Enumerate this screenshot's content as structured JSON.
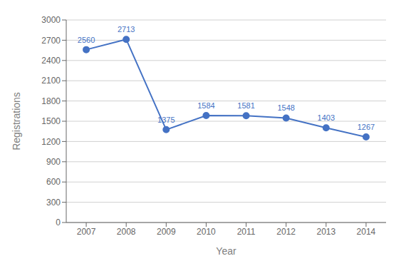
{
  "chart_data": {
    "type": "line",
    "x": [
      2007,
      2008,
      2009,
      2010,
      2011,
      2012,
      2013,
      2014
    ],
    "values": [
      2560,
      2713,
      1375,
      1584,
      1581,
      1548,
      1403,
      1267
    ],
    "color": "#4472c4",
    "marker": "o",
    "xlabel": "Year",
    "ylabel": "Registrations",
    "xlim": [
      2006.5,
      2014.5
    ],
    "xticks": [
      2007,
      2008,
      2009,
      2010,
      2011,
      2012,
      2013,
      2014
    ],
    "ylim": [
      0,
      3000
    ],
    "yticks": [
      0,
      300,
      600,
      900,
      1200,
      1500,
      1800,
      2100,
      2400,
      2700,
      3000
    ],
    "grid": true,
    "data_labels": true
  }
}
